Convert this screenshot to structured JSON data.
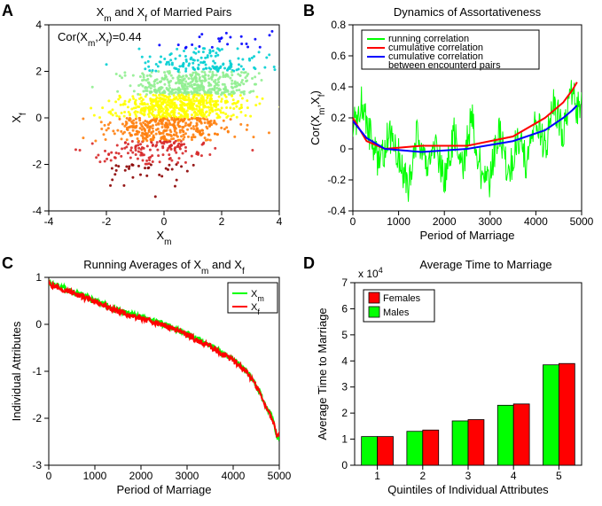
{
  "panelA": {
    "label": "A",
    "title": "X_m and X_f of Married Pairs",
    "xlabel": "X_m",
    "ylabel": "X_f",
    "annotation": "Cor(X_m,X_f)=0.44",
    "xlim": [
      -4,
      4
    ],
    "ylim": [
      -4,
      4
    ],
    "xticks": [
      -4,
      -2,
      0,
      2,
      4
    ],
    "yticks": [
      -4,
      -2,
      0,
      2,
      4
    ],
    "type": "scatter",
    "n_points": 1600,
    "cluster_center": [
      0.5,
      0.5
    ],
    "cluster_std": 1.2,
    "correlation": 0.44,
    "color_axis": "both",
    "colormap": {
      "low": "#8b0000",
      "mid1": "#d62728",
      "mid2": "#ff7f0e",
      "mid3": "#ffff00",
      "mid4": "#90ee90",
      "mid5": "#00ced1",
      "high": "#0000ff"
    },
    "marker_size": 1.5,
    "background": "#ffffff",
    "axis_color": "#000000"
  },
  "panelB": {
    "label": "B",
    "title": "Dynamics of Assortativeness",
    "xlabel": "Period of Marriage",
    "ylabel": "Cor(X_m,X_f)",
    "xlim": [
      0,
      5000
    ],
    "ylim": [
      -0.4,
      0.8
    ],
    "xticks": [
      0,
      1000,
      2000,
      3000,
      4000,
      5000
    ],
    "yticks": [
      -0.4,
      -0.2,
      0,
      0.2,
      0.4,
      0.6,
      0.8
    ],
    "type": "line",
    "legend_pos": "top",
    "series": [
      {
        "name": "running correlation",
        "color": "#00ff00",
        "linewidth": 1,
        "style": "noisy",
        "trend": [
          [
            0,
            0.15
          ],
          [
            200,
            0.3
          ],
          [
            400,
            0.05
          ],
          [
            600,
            -0.1
          ],
          [
            800,
            0.1
          ],
          [
            1000,
            -0.05
          ],
          [
            1200,
            -0.25
          ],
          [
            1400,
            0.1
          ],
          [
            1600,
            -0.15
          ],
          [
            1800,
            0.05
          ],
          [
            2000,
            -0.2
          ],
          [
            2200,
            0.1
          ],
          [
            2400,
            -0.1
          ],
          [
            2600,
            0.2
          ],
          [
            2800,
            -0.15
          ],
          [
            3000,
            -0.2
          ],
          [
            3200,
            0.15
          ],
          [
            3400,
            -0.2
          ],
          [
            3600,
            0.1
          ],
          [
            3800,
            -0.1
          ],
          [
            4000,
            0.2
          ],
          [
            4200,
            0.0
          ],
          [
            4400,
            0.3
          ],
          [
            4600,
            0.1
          ],
          [
            4800,
            0.4
          ],
          [
            4900,
            0.25
          ]
        ],
        "noise_amp": 0.12,
        "noise_freq": 60
      },
      {
        "name": "cumulative correlation",
        "color": "#ff0000",
        "linewidth": 2,
        "style": "smooth",
        "points": [
          [
            0,
            0.2
          ],
          [
            300,
            0.05
          ],
          [
            700,
            0.0
          ],
          [
            1500,
            0.02
          ],
          [
            2500,
            0.02
          ],
          [
            3500,
            0.08
          ],
          [
            4200,
            0.2
          ],
          [
            4600,
            0.3
          ],
          [
            4800,
            0.38
          ],
          [
            4900,
            0.43
          ]
        ]
      },
      {
        "name": "cumulative correlation between encounterd pairs",
        "color": "#0000ff",
        "linewidth": 2,
        "style": "smooth",
        "points": [
          [
            0,
            0.18
          ],
          [
            300,
            0.07
          ],
          [
            700,
            0.0
          ],
          [
            1500,
            -0.02
          ],
          [
            2500,
            0.0
          ],
          [
            3500,
            0.05
          ],
          [
            4200,
            0.12
          ],
          [
            4600,
            0.2
          ],
          [
            4800,
            0.25
          ],
          [
            4900,
            0.28
          ]
        ]
      }
    ],
    "background": "#ffffff",
    "axis_color": "#000000"
  },
  "panelC": {
    "label": "C",
    "title": "Running Averages of X_m and X_f",
    "xlabel": "Period of Marriage",
    "ylabel": "Individual Attributes",
    "xlim": [
      0,
      5000
    ],
    "ylim": [
      -3,
      1
    ],
    "xticks": [
      0,
      1000,
      2000,
      3000,
      4000,
      5000
    ],
    "yticks": [
      -3,
      -2,
      -1,
      0,
      1
    ],
    "type": "line",
    "legend_pos": "right",
    "series": [
      {
        "name": "X_m",
        "color": "#00ff00",
        "linewidth": 2,
        "style": "noisy",
        "trend": [
          [
            0,
            0.9
          ],
          [
            500,
            0.7
          ],
          [
            1000,
            0.5
          ],
          [
            1500,
            0.3
          ],
          [
            2000,
            0.15
          ],
          [
            2500,
            0.0
          ],
          [
            3000,
            -0.2
          ],
          [
            3500,
            -0.45
          ],
          [
            4000,
            -0.75
          ],
          [
            4300,
            -1.0
          ],
          [
            4500,
            -1.3
          ],
          [
            4700,
            -1.7
          ],
          [
            4850,
            -2.0
          ],
          [
            4950,
            -2.4
          ]
        ],
        "noise_amp": 0.06,
        "noise_freq": 80
      },
      {
        "name": "X_f",
        "color": "#ff0000",
        "linewidth": 2,
        "style": "noisy",
        "trend": [
          [
            0,
            0.85
          ],
          [
            500,
            0.68
          ],
          [
            1000,
            0.48
          ],
          [
            1500,
            0.28
          ],
          [
            2000,
            0.12
          ],
          [
            2500,
            -0.02
          ],
          [
            3000,
            -0.22
          ],
          [
            3500,
            -0.47
          ],
          [
            4000,
            -0.77
          ],
          [
            4300,
            -1.02
          ],
          [
            4500,
            -1.32
          ],
          [
            4700,
            -1.72
          ],
          [
            4850,
            -2.02
          ],
          [
            4950,
            -2.35
          ]
        ],
        "noise_amp": 0.06,
        "noise_freq": 80
      }
    ],
    "background": "#ffffff",
    "axis_color": "#000000"
  },
  "panelD": {
    "label": "D",
    "title": "Average Time to Marriage",
    "title_prefix": "x 10^4",
    "xlabel": "Quintiles of Individual Attributes",
    "ylabel": "Average Time to Marriage",
    "xlim": [
      0.5,
      5.5
    ],
    "ylim": [
      0,
      7
    ],
    "xticks": [
      1,
      2,
      3,
      4,
      5
    ],
    "yticks": [
      0,
      1,
      2,
      3,
      4,
      5,
      6,
      7
    ],
    "type": "bar",
    "categories": [
      "1",
      "2",
      "3",
      "4",
      "5"
    ],
    "legend_pos": "top-left",
    "series": [
      {
        "name": "Females",
        "color": "#ff0000",
        "values": [
          1.1,
          1.35,
          1.75,
          2.35,
          3.9
        ]
      },
      {
        "name": "Males",
        "color": "#00ff00",
        "values": [
          1.1,
          1.3,
          1.7,
          2.3,
          3.85
        ]
      }
    ],
    "bar_width": 0.35,
    "bar_edge": "#000000",
    "background": "#ffffff",
    "axis_color": "#000000"
  }
}
